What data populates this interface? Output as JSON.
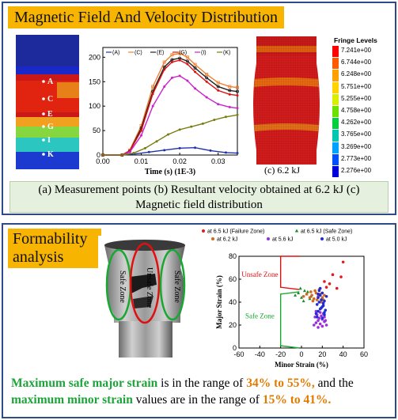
{
  "top_panel": {
    "title": "Magnetic Field And Velocity Distribution",
    "point_labels": [
      "A",
      "C",
      "E",
      "G",
      "I",
      "K"
    ],
    "fringe_title": "Fringe Levels",
    "fringe_levels": [
      "7.241e+00",
      "6.744e+00",
      "6.248e+00",
      "5.751e+00",
      "5.255e+00",
      "4.758e+00",
      "4.262e+00",
      "3.765e+00",
      "3.269e+00",
      "2.773e+00",
      "2.276e+00"
    ],
    "fringe_colors": [
      "#ff0000",
      "#ff5a00",
      "#ffa000",
      "#ffd200",
      "#d8f000",
      "#6ee000",
      "#00d040",
      "#00c8b0",
      "#00a0ff",
      "#0050ff",
      "#0000d8"
    ],
    "sublabel_c": "(c) 6.2 kJ",
    "caption_line1": "(a) Measurement points (b) Resultant velocity obtained at 6.2 kJ (c)",
    "caption_line2": "Magnetic field distribution"
  },
  "chart_data": [
    {
      "type": "line",
      "xlabel": "Time (s) (1E-3)",
      "ylabel": "",
      "xlim": [
        0,
        0.035
      ],
      "ylim": [
        0,
        220
      ],
      "x_ticks": [
        "0.00",
        "0.01",
        "0.02",
        "0.03"
      ],
      "y_ticks": [
        "0",
        "50",
        "100",
        "150",
        "200"
      ],
      "series": [
        {
          "name": "(A)",
          "color": "#2233aa",
          "x": [
            0,
            0.005,
            0.008,
            0.012,
            0.016,
            0.02,
            0.024,
            0.028,
            0.032,
            0.035
          ],
          "y": [
            0,
            0,
            2,
            6,
            10,
            14,
            15,
            9,
            5,
            4
          ]
        },
        {
          "name": "(C)",
          "color": "#f08030",
          "x": [
            0,
            0.005,
            0.007,
            0.01,
            0.013,
            0.016,
            0.018,
            0.02,
            0.022,
            0.024,
            0.027,
            0.03,
            0.033,
            0.035
          ],
          "y": [
            0,
            0,
            10,
            60,
            140,
            190,
            205,
            208,
            200,
            185,
            165,
            148,
            140,
            138
          ]
        },
        {
          "name": "(E)",
          "color": "#222222",
          "x": [
            0,
            0.005,
            0.007,
            0.01,
            0.013,
            0.016,
            0.018,
            0.02,
            0.022,
            0.024,
            0.027,
            0.03,
            0.033,
            0.035
          ],
          "y": [
            0,
            0,
            8,
            55,
            130,
            180,
            195,
            198,
            192,
            178,
            158,
            140,
            132,
            130
          ]
        },
        {
          "name": "(G)",
          "color": "#dd1111",
          "x": [
            0,
            0.005,
            0.007,
            0.01,
            0.013,
            0.016,
            0.018,
            0.02,
            0.022,
            0.024,
            0.027,
            0.03,
            0.033,
            0.035
          ],
          "y": [
            0,
            0,
            8,
            50,
            125,
            175,
            190,
            194,
            186,
            170,
            150,
            132,
            124,
            122
          ]
        },
        {
          "name": "(I)",
          "color": "#cc22cc",
          "x": [
            0,
            0.005,
            0.007,
            0.01,
            0.013,
            0.016,
            0.018,
            0.02,
            0.022,
            0.024,
            0.027,
            0.03,
            0.033,
            0.035
          ],
          "y": [
            0,
            0,
            6,
            40,
            100,
            140,
            158,
            162,
            152,
            136,
            118,
            104,
            98,
            96
          ]
        },
        {
          "name": "(K)",
          "color": "#7a7a10",
          "x": [
            0,
            0.005,
            0.008,
            0.011,
            0.014,
            0.017,
            0.02,
            0.023,
            0.026,
            0.029,
            0.032,
            0.035
          ],
          "y": [
            0,
            0,
            4,
            14,
            28,
            42,
            52,
            58,
            64,
            72,
            78,
            82
          ]
        }
      ]
    },
    {
      "type": "scatter",
      "xlabel": "Minor Strain (%)",
      "ylabel": "Major Strain (%)",
      "xlim": [
        -60,
        60
      ],
      "ylim": [
        0,
        80
      ],
      "x_ticks": [
        "-60",
        "-40",
        "-20",
        "0",
        "20",
        "40",
        "60"
      ],
      "y_ticks": [
        "0",
        "20",
        "40",
        "60",
        "80"
      ],
      "series": [
        {
          "name": "at 6.5 kJ (Failure Zone)",
          "color": "#e41a1c",
          "shape": "circle",
          "x": [
            30,
            40,
            38,
            27,
            24,
            34,
            22
          ],
          "y": [
            64,
            75,
            62,
            56,
            53,
            52,
            58
          ]
        },
        {
          "name": "at 6.5 kJ (Safe Zone)",
          "color": "#1a8c2a",
          "shape": "triangle",
          "x": [
            -6,
            -3,
            0,
            3,
            5,
            8,
            2,
            6,
            -1,
            9
          ],
          "y": [
            46,
            48,
            44,
            50,
            47,
            43,
            41,
            49,
            52,
            45
          ]
        },
        {
          "name": "at 6.2 kJ",
          "color": "#d2691e",
          "shape": "circle",
          "x": [
            2,
            5,
            8,
            10,
            12,
            14,
            16,
            18,
            20,
            22,
            11,
            15,
            19,
            9,
            13,
            17,
            21
          ],
          "y": [
            45,
            47,
            44,
            46,
            43,
            48,
            45,
            47,
            44,
            46,
            41,
            42,
            40,
            49,
            50,
            51,
            42
          ]
        },
        {
          "name": "at 5.6 kJ",
          "color": "#9b30d9",
          "shape": "circle",
          "x": [
            12,
            14,
            16,
            18,
            20,
            22,
            24,
            13,
            15,
            17,
            19,
            21,
            23,
            14,
            18,
            22,
            16,
            20
          ],
          "y": [
            20,
            22,
            24,
            21,
            25,
            23,
            20,
            27,
            29,
            26,
            28,
            30,
            24,
            32,
            31,
            27,
            18,
            19
          ]
        },
        {
          "name": "at 5.0 kJ",
          "color": "#1f2bd6",
          "shape": "circle",
          "x": [
            14,
            16,
            18,
            20,
            22,
            15,
            17,
            19,
            21,
            23,
            16,
            18,
            20,
            22,
            17,
            19,
            21,
            15,
            20,
            24,
            18,
            22,
            16
          ],
          "y": [
            30,
            32,
            34,
            36,
            31,
            38,
            40,
            42,
            37,
            33,
            44,
            46,
            48,
            41,
            50,
            35,
            39,
            27,
            26,
            45,
            52,
            29,
            47
          ]
        }
      ],
      "zones": {
        "unsafe": "Unsafe Zone",
        "safe": "Safe Zone"
      }
    }
  ],
  "bottom_panel": {
    "title_line1": "Formability",
    "title_line2": "analysis",
    "photo_zone_labels": [
      "Safe Zone",
      "Unsafe Zone",
      "Safe Zone"
    ],
    "summary_part1": "Maximum safe major strain",
    "summary_part2": " is in the range of ",
    "summary_part3": "34% to 55%,",
    "summary_part4": " and the ",
    "summary_part5": "maximum minor strain",
    "summary_part6": " values are in the range of ",
    "summary_part7": "15% to 41%."
  }
}
